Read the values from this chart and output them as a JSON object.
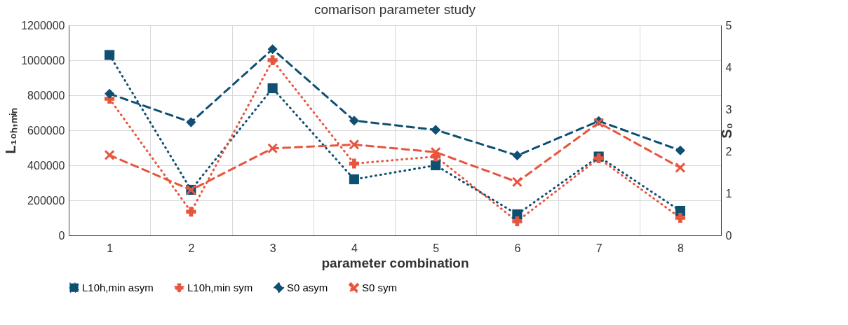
{
  "chart_data": {
    "type": "line",
    "title": "comarison parameter study",
    "xlabel": "parameter combination",
    "ylabel": "L₁₀ₕ,ₘᵢₙ",
    "y2label": "S₀",
    "categories": [
      "1",
      "2",
      "3",
      "4",
      "5",
      "6",
      "7",
      "8"
    ],
    "series": [
      {
        "name": "L10h,min asym",
        "color": "#0e4f72",
        "marker": "square",
        "line_style": "dotted",
        "values": [
          1030000,
          260000,
          840000,
          320000,
          400000,
          120000,
          450000,
          140000
        ]
      },
      {
        "name": "L10h,min sym",
        "color": "#e8553f",
        "marker": "cross",
        "line_style": "dotted",
        "values": [
          780000,
          135000,
          1000000,
          410000,
          450000,
          80000,
          440000,
          100000
        ]
      },
      {
        "name": "S0 asym",
        "color": "#0e4f72",
        "marker": "diamond",
        "line_style": "dashed",
        "axis": "y2",
        "values": [
          3.37,
          2.69,
          4.43,
          2.73,
          2.51,
          1.9,
          2.72,
          2.02
        ]
      },
      {
        "name": "S0 sym",
        "color": "#e8553f",
        "marker": "x",
        "line_style": "dashed",
        "axis": "y2",
        "values": [
          1.91,
          1.08,
          2.07,
          2.16,
          1.98,
          1.27,
          2.68,
          1.61
        ]
      }
    ],
    "ylim": [
      0,
      1200000
    ],
    "yticks": [
      0,
      200000,
      400000,
      600000,
      800000,
      1000000,
      1200000
    ],
    "y2lim": [
      0,
      5
    ],
    "y2ticks": [
      0,
      1,
      2,
      3,
      4,
      5
    ],
    "grid": true,
    "legend": "bottom"
  }
}
